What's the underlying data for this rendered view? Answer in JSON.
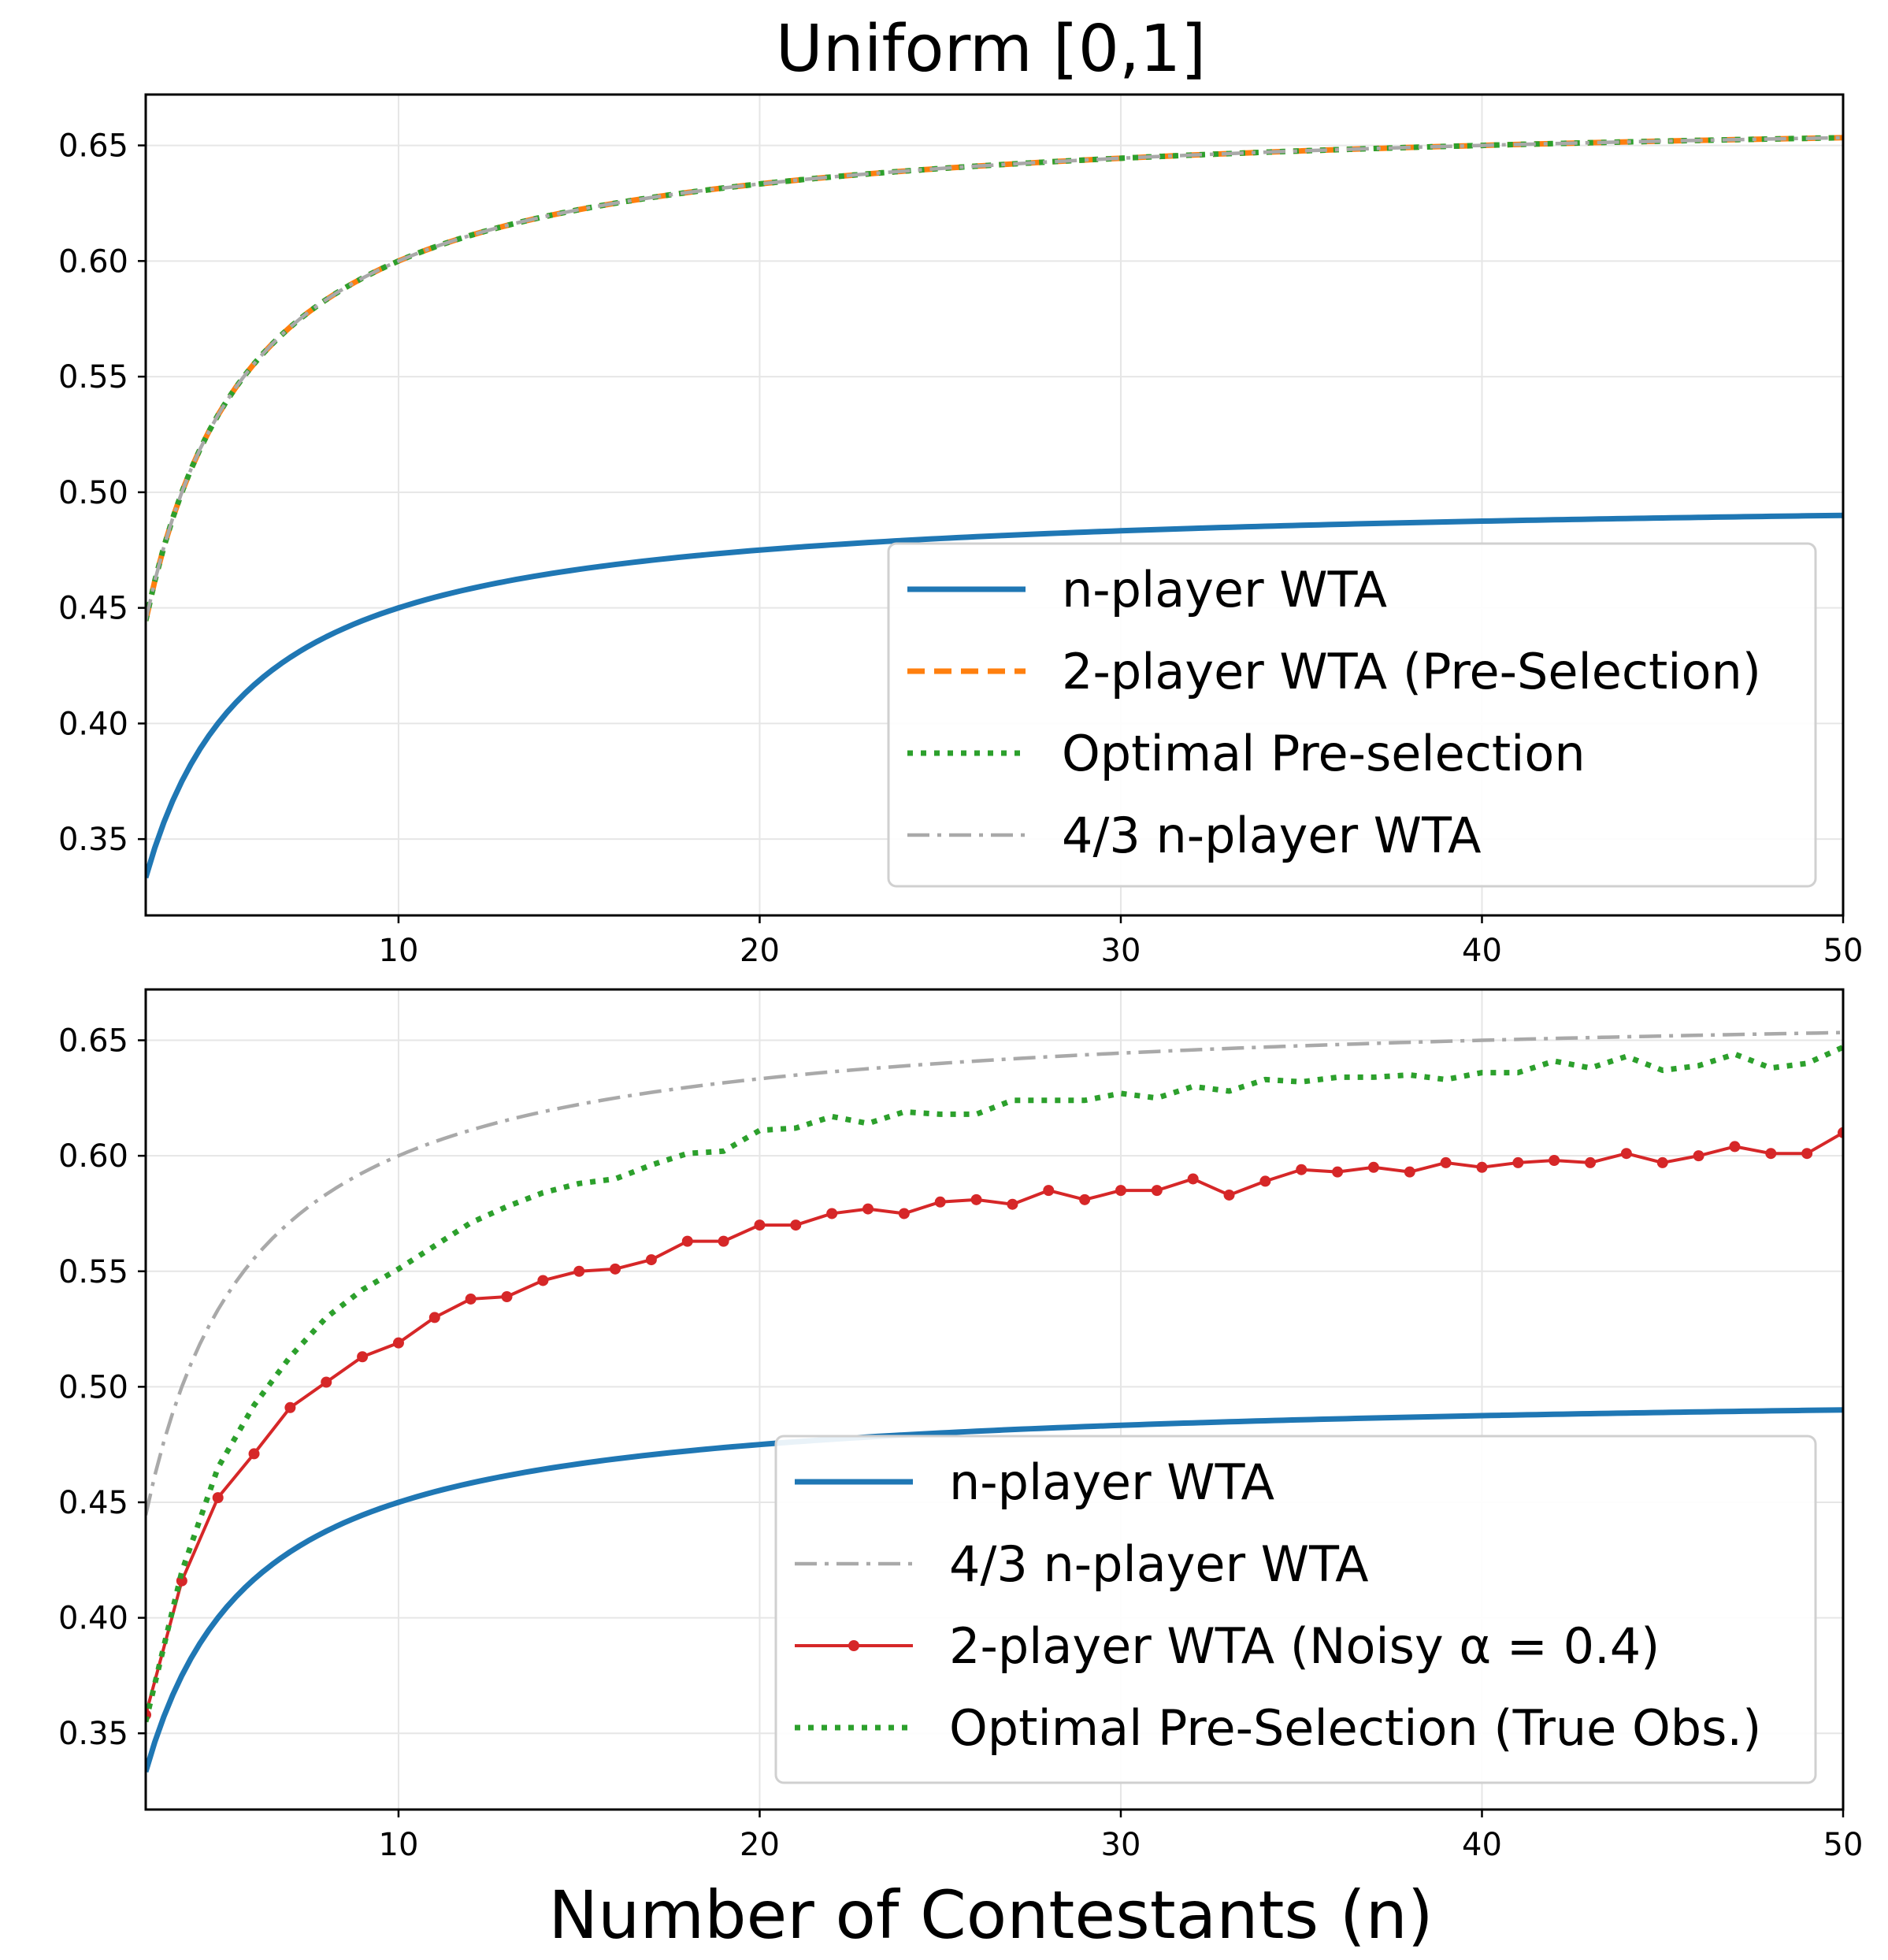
{
  "figure": {
    "title": "Uniform [0,1]",
    "xlabel": "Number of Contestants (n)"
  },
  "colors": {
    "n_player": "#1f77b4",
    "two_player_pre": "#ff7f0e",
    "optimal": "#2ca02c",
    "four_thirds": "#a9a9a9",
    "noisy": "#d62728",
    "grid": "#e6e6e6"
  },
  "chart_data": [
    {
      "type": "line",
      "title": "Uniform [0,1]",
      "xlabel": "",
      "ylabel": "",
      "xlim": [
        3,
        50
      ],
      "ylim": [
        0.317,
        0.672
      ],
      "xticks": [
        10,
        20,
        30,
        40,
        50
      ],
      "yticks": [
        0.35,
        0.4,
        0.45,
        0.5,
        0.55,
        0.6,
        0.65
      ],
      "ytick_labels": [
        "0.35",
        "0.40",
        "0.45",
        "0.50",
        "0.55",
        "0.60",
        "0.65"
      ],
      "grid": true,
      "legend_position": "lower-right",
      "series": [
        {
          "name": "n-player WTA",
          "style": "solid",
          "formula": "(n-1)/(2n)",
          "x": [
            3,
            50
          ]
        },
        {
          "name": "2-player WTA (Pre-Selection)",
          "style": "dashed",
          "formula": "2(n-1)/(3n)",
          "x": [
            3,
            50
          ]
        },
        {
          "name": "Optimal Pre-selection",
          "style": "dotted",
          "formula": "2(n-1)/(3n)",
          "x": [
            3,
            50
          ]
        },
        {
          "name": "4/3 n-player WTA",
          "style": "dashdot",
          "formula": "(4/3)(n-1)/(2n)",
          "x": [
            3,
            50
          ]
        }
      ]
    },
    {
      "type": "line",
      "xlabel": "Number of Contestants (n)",
      "ylabel": "",
      "xlim": [
        3,
        50
      ],
      "ylim": [
        0.317,
        0.672
      ],
      "xticks": [
        10,
        20,
        30,
        40,
        50
      ],
      "yticks": [
        0.35,
        0.4,
        0.45,
        0.5,
        0.55,
        0.6,
        0.65
      ],
      "ytick_labels": [
        "0.35",
        "0.40",
        "0.45",
        "0.50",
        "0.55",
        "0.60",
        "0.65"
      ],
      "grid": true,
      "legend_position": "lower-right",
      "series": [
        {
          "name": "n-player WTA",
          "style": "solid",
          "formula": "(n-1)/(2n)",
          "x": [
            3,
            50
          ]
        },
        {
          "name": "4/3 n-player WTA",
          "style": "dashdot",
          "formula": "(4/3)(n-1)/(2n)",
          "x": [
            3,
            50
          ]
        },
        {
          "name": "2-player WTA (Noisy α = 0.4)",
          "style": "solid-marker",
          "x": [
            3,
            4,
            5,
            6,
            7,
            8,
            9,
            10,
            11,
            12,
            13,
            14,
            15,
            16,
            17,
            18,
            19,
            20,
            21,
            22,
            23,
            24,
            25,
            26,
            27,
            28,
            29,
            30,
            31,
            32,
            33,
            34,
            35,
            36,
            37,
            38,
            39,
            40,
            41,
            42,
            43,
            44,
            45,
            46,
            47,
            48,
            49,
            50
          ],
          "values": [
            0.358,
            0.416,
            0.452,
            0.471,
            0.491,
            0.502,
            0.513,
            0.519,
            0.53,
            0.538,
            0.539,
            0.546,
            0.55,
            0.551,
            0.555,
            0.563,
            0.563,
            0.57,
            0.57,
            0.575,
            0.577,
            0.575,
            0.58,
            0.581,
            0.579,
            0.585,
            0.581,
            0.585,
            0.585,
            0.59,
            0.583,
            0.589,
            0.594,
            0.593,
            0.595,
            0.593,
            0.597,
            0.595,
            0.597,
            0.598,
            0.597,
            0.601,
            0.597,
            0.6,
            0.604,
            0.601,
            0.601,
            0.61
          ]
        },
        {
          "name": "Optimal Pre-Selection (True Obs.)",
          "style": "dotted",
          "x": [
            3,
            4,
            5,
            6,
            7,
            8,
            9,
            10,
            11,
            12,
            13,
            14,
            15,
            16,
            17,
            18,
            19,
            20,
            21,
            22,
            23,
            24,
            25,
            26,
            27,
            28,
            29,
            30,
            31,
            32,
            33,
            34,
            35,
            36,
            37,
            38,
            39,
            40,
            41,
            42,
            43,
            44,
            45,
            46,
            47,
            48,
            49,
            50
          ],
          "values": [
            0.355,
            0.42,
            0.465,
            0.492,
            0.513,
            0.53,
            0.542,
            0.551,
            0.561,
            0.571,
            0.578,
            0.584,
            0.588,
            0.59,
            0.596,
            0.601,
            0.602,
            0.611,
            0.612,
            0.617,
            0.614,
            0.619,
            0.618,
            0.618,
            0.624,
            0.624,
            0.624,
            0.627,
            0.625,
            0.63,
            0.628,
            0.633,
            0.632,
            0.634,
            0.634,
            0.635,
            0.633,
            0.636,
            0.636,
            0.641,
            0.638,
            0.643,
            0.637,
            0.639,
            0.644,
            0.638,
            0.64,
            0.647
          ]
        }
      ]
    }
  ]
}
